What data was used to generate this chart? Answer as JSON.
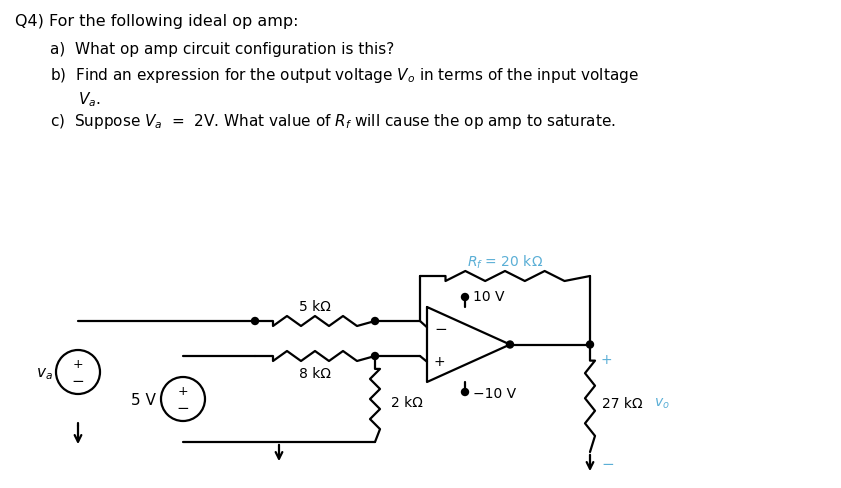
{
  "title_text": "Q4) For the following ideal op amp:",
  "question_a": "a)  What op amp circuit configuration is this?",
  "bg_color": "#ffffff",
  "text_color": "#000000",
  "circuit_color": "#000000",
  "label_color_blue": "#5bafd6",
  "rf_label": "$R_f$ = 20 kΩ",
  "r1_label": "5 kΩ",
  "r2_label": "8 kΩ",
  "r3_label": "2 kΩ",
  "r4_label": "27 kΩ",
  "v1_label": "$v_a$",
  "v2_label": "5 V",
  "vp_label": "10 V",
  "vn_label": "−10 V",
  "vo_label": "$v_o$"
}
